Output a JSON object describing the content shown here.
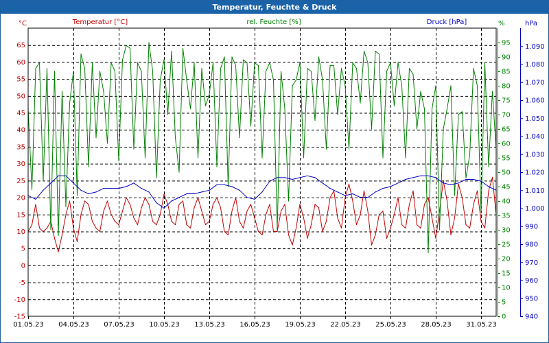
{
  "window": {
    "title": "Temperatur, Feuchte & Druck"
  },
  "chart_data": {
    "type": "line",
    "title": "Temperatur, Feuchte & Druck",
    "grid": true,
    "x_ticks": [
      "01.05.23",
      "04.05.23",
      "07.05.23",
      "10.05.23",
      "13.05.23",
      "16.05.23",
      "19.05.23",
      "22.05.23",
      "25.05.23",
      "28.05.23",
      "31.05.23"
    ],
    "x_range_days": [
      1,
      32
    ],
    "axes": {
      "temperature": {
        "label": "Temperatur [°C]",
        "unit": "°C",
        "color": "#c00000",
        "range": [
          -15,
          70
        ],
        "ticks": [
          "-15",
          "-10",
          "-5",
          "0",
          "5",
          "10",
          "15",
          "20",
          "25",
          "30",
          "35",
          "40",
          "45",
          "50",
          "55",
          "60",
          "65"
        ]
      },
      "humidity": {
        "label": "rel. Feuchte [%]",
        "unit": "%",
        "color": "#008000",
        "range": [
          0,
          100
        ],
        "ticks": [
          "0",
          "5",
          "10",
          "15",
          "20",
          "25",
          "30",
          "35",
          "40",
          "45",
          "50",
          "55",
          "60",
          "65",
          "70",
          "75",
          "80",
          "85",
          "90",
          "95"
        ]
      },
      "pressure": {
        "label": "Druck [hPa]",
        "unit": "hPa",
        "color": "#0000c0",
        "range": [
          940,
          1100
        ],
        "ticks": [
          "940",
          "950",
          "960",
          "970",
          "980",
          "990",
          "1.000",
          "1.010",
          "1.020",
          "1.030",
          "1.040",
          "1.050",
          "1.060",
          "1.070",
          "1.080",
          "1.090"
        ]
      }
    },
    "series": [
      {
        "name": "Temperatur [°C]",
        "axis": "temperature",
        "color": "#c00000",
        "x": [
          1.0,
          1.25,
          1.5,
          1.75,
          2.0,
          2.25,
          2.5,
          2.75,
          3.0,
          3.25,
          3.5,
          3.75,
          4.0,
          4.25,
          4.5,
          4.75,
          5.0,
          5.25,
          5.5,
          5.75,
          6.0,
          6.25,
          6.5,
          6.75,
          7.0,
          7.25,
          7.5,
          7.75,
          8.0,
          8.25,
          8.5,
          8.75,
          9.0,
          9.25,
          9.5,
          9.75,
          10.0,
          10.25,
          10.5,
          10.75,
          11.0,
          11.25,
          11.5,
          11.75,
          12.0,
          12.25,
          12.5,
          12.75,
          13.0,
          13.25,
          13.5,
          13.75,
          14.0,
          14.25,
          14.5,
          14.75,
          15.0,
          15.25,
          15.5,
          15.75,
          16.0,
          16.25,
          16.5,
          16.75,
          17.0,
          17.25,
          17.5,
          17.75,
          18.0,
          18.25,
          18.5,
          18.75,
          19.0,
          19.25,
          19.5,
          19.75,
          20.0,
          20.25,
          20.5,
          20.75,
          21.0,
          21.25,
          21.5,
          21.75,
          22.0,
          22.25,
          22.5,
          22.75,
          23.0,
          23.25,
          23.5,
          23.75,
          24.0,
          24.25,
          24.5,
          24.75,
          25.0,
          25.25,
          25.5,
          25.75,
          26.0,
          26.25,
          26.5,
          26.75,
          27.0,
          27.25,
          27.5,
          27.75,
          28.0,
          28.25,
          28.5,
          28.75,
          29.0,
          29.25,
          29.5,
          29.75,
          30.0,
          30.25,
          30.5,
          30.75,
          31.0,
          31.25,
          31.5,
          31.75,
          32.0
        ],
        "values": [
          10,
          12,
          18,
          11,
          10,
          11,
          13,
          8,
          4,
          9,
          15,
          19,
          11,
          7,
          15,
          19,
          18,
          13,
          11,
          10,
          16,
          19,
          15,
          13,
          12,
          16,
          20,
          18,
          14,
          12,
          17,
          20,
          18,
          13,
          12,
          15,
          21,
          18,
          13,
          12,
          18,
          19,
          12,
          11,
          17,
          20,
          16,
          12,
          13,
          18,
          20,
          17,
          10,
          9,
          16,
          20,
          13,
          11,
          16,
          18,
          14,
          10,
          9,
          15,
          18,
          10,
          10,
          16,
          18,
          9,
          6,
          11,
          18,
          14,
          8,
          12,
          18,
          17,
          10,
          13,
          20,
          22,
          14,
          11,
          20,
          24,
          19,
          12,
          15,
          22,
          16,
          6,
          9,
          15,
          16,
          8,
          11,
          15,
          20,
          12,
          11,
          18,
          22,
          12,
          11,
          18,
          20,
          14,
          8,
          16,
          25,
          19,
          9,
          14,
          24,
          20,
          12,
          11,
          18,
          22,
          13,
          11,
          22,
          26,
          15
        ]
      },
      {
        "name": "rel. Feuchte [%]",
        "axis": "humidity",
        "color": "#008000",
        "x": [
          1.0,
          1.25,
          1.5,
          1.75,
          2.0,
          2.25,
          2.5,
          2.75,
          3.0,
          3.25,
          3.5,
          3.75,
          4.0,
          4.25,
          4.5,
          4.75,
          5.0,
          5.25,
          5.5,
          5.75,
          6.0,
          6.25,
          6.5,
          6.75,
          7.0,
          7.25,
          7.5,
          7.75,
          8.0,
          8.25,
          8.5,
          8.75,
          9.0,
          9.25,
          9.5,
          9.75,
          10.0,
          10.25,
          10.5,
          10.75,
          11.0,
          11.25,
          11.5,
          11.75,
          12.0,
          12.25,
          12.5,
          12.75,
          13.0,
          13.25,
          13.5,
          13.75,
          14.0,
          14.25,
          14.5,
          14.75,
          15.0,
          15.25,
          15.5,
          15.75,
          16.0,
          16.25,
          16.5,
          16.75,
          17.0,
          17.25,
          17.5,
          17.75,
          18.0,
          18.25,
          18.5,
          18.75,
          19.0,
          19.25,
          19.5,
          19.75,
          20.0,
          20.25,
          20.5,
          20.75,
          21.0,
          21.25,
          21.5,
          21.75,
          22.0,
          22.25,
          22.5,
          22.75,
          23.0,
          23.25,
          23.5,
          23.75,
          24.0,
          24.25,
          24.5,
          24.75,
          25.0,
          25.25,
          25.5,
          25.75,
          26.0,
          26.25,
          26.5,
          26.75,
          27.0,
          27.25,
          27.5,
          27.75,
          28.0,
          28.25,
          28.5,
          28.75,
          29.0,
          29.25,
          29.5,
          29.75,
          30.0,
          30.25,
          30.5,
          30.75,
          31.0,
          31.25,
          31.5,
          31.75,
          32.0
        ],
        "values": [
          72,
          44,
          86,
          88,
          47,
          86,
          30,
          85,
          28,
          78,
          38,
          74,
          85,
          42,
          91,
          86,
          52,
          88,
          62,
          85,
          78,
          60,
          88,
          85,
          54,
          89,
          94,
          93,
          58,
          88,
          85,
          55,
          95,
          85,
          48,
          82,
          89,
          70,
          92,
          62,
          50,
          93,
          82,
          72,
          88,
          55,
          86,
          73,
          77,
          88,
          52,
          86,
          90,
          45,
          90,
          87,
          62,
          89,
          88,
          66,
          88,
          87,
          55,
          85,
          88,
          82,
          30,
          85,
          72,
          40,
          80,
          82,
          88,
          55,
          86,
          85,
          68,
          90,
          82,
          58,
          87,
          87,
          70,
          86,
          80,
          58,
          88,
          86,
          74,
          92,
          88,
          65,
          92,
          91,
          55,
          85,
          88,
          73,
          88,
          80,
          55,
          86,
          84,
          65,
          78,
          72,
          22,
          72,
          80,
          30,
          65,
          72,
          80,
          42,
          70,
          71,
          48,
          56,
          86,
          80,
          36,
          88,
          52,
          78,
          58
        ]
      },
      {
        "name": "Druck [hPa]",
        "axis": "pressure",
        "color": "#0000c0",
        "x": [
          1.0,
          1.5,
          2.0,
          2.5,
          3.0,
          3.5,
          4.0,
          4.5,
          5.0,
          5.5,
          6.0,
          6.5,
          7.0,
          7.5,
          8.0,
          8.5,
          9.0,
          9.5,
          10.0,
          10.5,
          11.0,
          11.5,
          12.0,
          12.5,
          13.0,
          13.5,
          14.0,
          14.5,
          15.0,
          15.5,
          16.0,
          16.5,
          17.0,
          17.5,
          18.0,
          18.5,
          19.0,
          19.5,
          20.0,
          20.5,
          21.0,
          21.5,
          22.0,
          22.5,
          23.0,
          23.5,
          24.0,
          24.5,
          25.0,
          25.5,
          26.0,
          26.5,
          27.0,
          27.5,
          28.0,
          28.5,
          29.0,
          29.5,
          30.0,
          30.5,
          31.0,
          31.5,
          32.0
        ],
        "values": [
          1007,
          1005,
          1010,
          1014,
          1018,
          1018,
          1014,
          1010,
          1008,
          1009,
          1011,
          1011,
          1011,
          1012,
          1014,
          1011,
          1009,
          1003,
          1000,
          1004,
          1006,
          1008,
          1008,
          1009,
          1010,
          1013,
          1013,
          1012,
          1010,
          1006,
          1005,
          1009,
          1015,
          1017,
          1017,
          1016,
          1017,
          1018,
          1017,
          1014,
          1011,
          1009,
          1007,
          1008,
          1006,
          1006,
          1009,
          1011,
          1012,
          1014,
          1016,
          1017,
          1018,
          1018,
          1017,
          1014,
          1013,
          1014,
          1016,
          1016,
          1015,
          1012,
          1010
        ]
      }
    ]
  }
}
